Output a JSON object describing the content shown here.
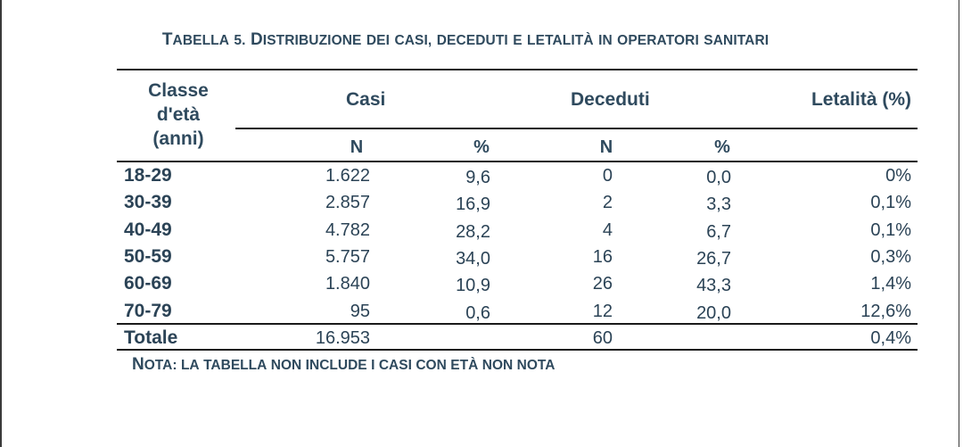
{
  "title": "Tabella 5. Distribuzione dei casi, deceduti e letalità in operatori sanitari",
  "header": {
    "age_class": [
      "Classe",
      "d'età",
      "(anni)"
    ],
    "cases": "Casi",
    "deaths": "Deceduti",
    "lethality": "Letalità (%)",
    "sub_n_cases": "N",
    "sub_pct_cases": "%",
    "sub_n_deaths": "N",
    "sub_pct_deaths": "%"
  },
  "rows": [
    {
      "age": "18-29",
      "cases_n": "1.622",
      "cases_pct": "9,6",
      "deaths_n": "0",
      "deaths_pct": "0,0",
      "lethality": "0%"
    },
    {
      "age": "30-39",
      "cases_n": "2.857",
      "cases_pct": "16,9",
      "deaths_n": "2",
      "deaths_pct": "3,3",
      "lethality": "0,1%"
    },
    {
      "age": "40-49",
      "cases_n": "4.782",
      "cases_pct": "28,2",
      "deaths_n": "4",
      "deaths_pct": "6,7",
      "lethality": "0,1%"
    },
    {
      "age": "50-59",
      "cases_n": "5.757",
      "cases_pct": "34,0",
      "deaths_n": "16",
      "deaths_pct": "26,7",
      "lethality": "0,3%"
    },
    {
      "age": "60-69",
      "cases_n": "1.840",
      "cases_pct": "10,9",
      "deaths_n": "26",
      "deaths_pct": "43,3",
      "lethality": "1,4%"
    },
    {
      "age": "70-79",
      "cases_n": "95",
      "cases_pct": "0,6",
      "deaths_n": "12",
      "deaths_pct": "20,0",
      "lethality": "12,6%"
    }
  ],
  "total": {
    "label": "Totale",
    "cases_n": "16.953",
    "deaths_n": "60",
    "lethality": "0,4%"
  },
  "note": "Nota: la tabella non include i casi con età non nota"
}
